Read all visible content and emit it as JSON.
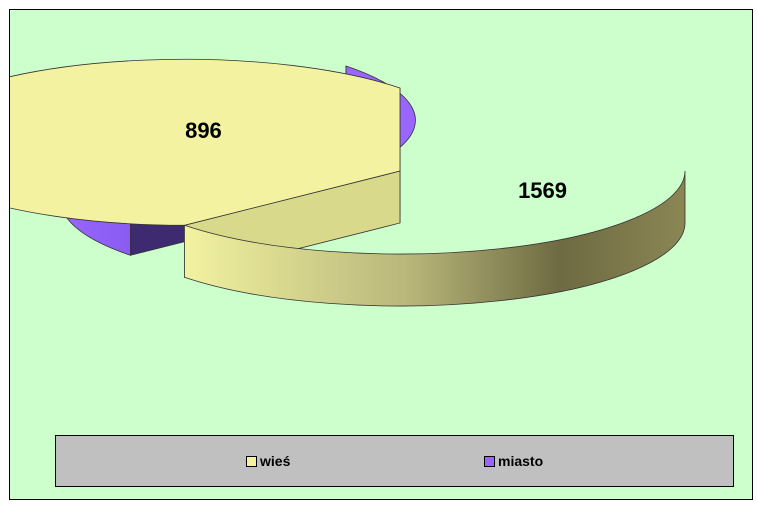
{
  "chart_data": {
    "type": "pie",
    "style": "3d-exploded",
    "categories": [
      "wieś",
      "miasto"
    ],
    "values": [
      1569,
      896
    ],
    "colors": [
      "#f2f2a0",
      "#9966ff"
    ],
    "data_labels": [
      "1569",
      "896"
    ],
    "legend": {
      "placement": "bottom",
      "entries": [
        "wieś",
        "miasto"
      ]
    },
    "background": "#ccffcc"
  }
}
